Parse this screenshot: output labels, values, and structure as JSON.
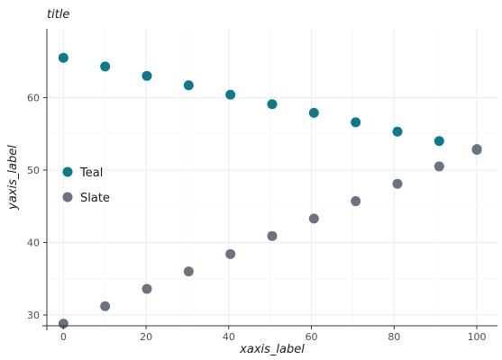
{
  "chart_data": {
    "type": "scatter",
    "title": "title",
    "xlabel": "xaxis_label",
    "ylabel": "yaxis_label",
    "xlim": [
      -4,
      105
    ],
    "ylim": [
      28.5,
      69.5
    ],
    "xticks": [
      0,
      20,
      40,
      60,
      80,
      100
    ],
    "yticks": [
      30,
      40,
      50,
      60
    ],
    "grid": true,
    "legend_position": "left",
    "colors": {
      "Teal": "#0d7a8a",
      "Slate": "#6b7280"
    },
    "series": [
      {
        "name": "Teal",
        "x": [
          0,
          10.1,
          20.2,
          30.3,
          40.4,
          50.5,
          60.6,
          70.7,
          80.8,
          90.9,
          100
        ],
        "y": [
          65.5,
          64.3,
          63.0,
          61.7,
          60.4,
          59.1,
          57.9,
          56.6,
          55.3,
          54.0,
          52.8
        ]
      },
      {
        "name": "Slate",
        "x": [
          0,
          10.1,
          20.2,
          30.3,
          40.4,
          50.5,
          60.6,
          70.7,
          80.8,
          90.9,
          100
        ],
        "y": [
          28.8,
          31.2,
          33.6,
          36.0,
          38.4,
          40.9,
          43.3,
          45.7,
          48.1,
          50.5,
          52.9
        ]
      }
    ]
  }
}
